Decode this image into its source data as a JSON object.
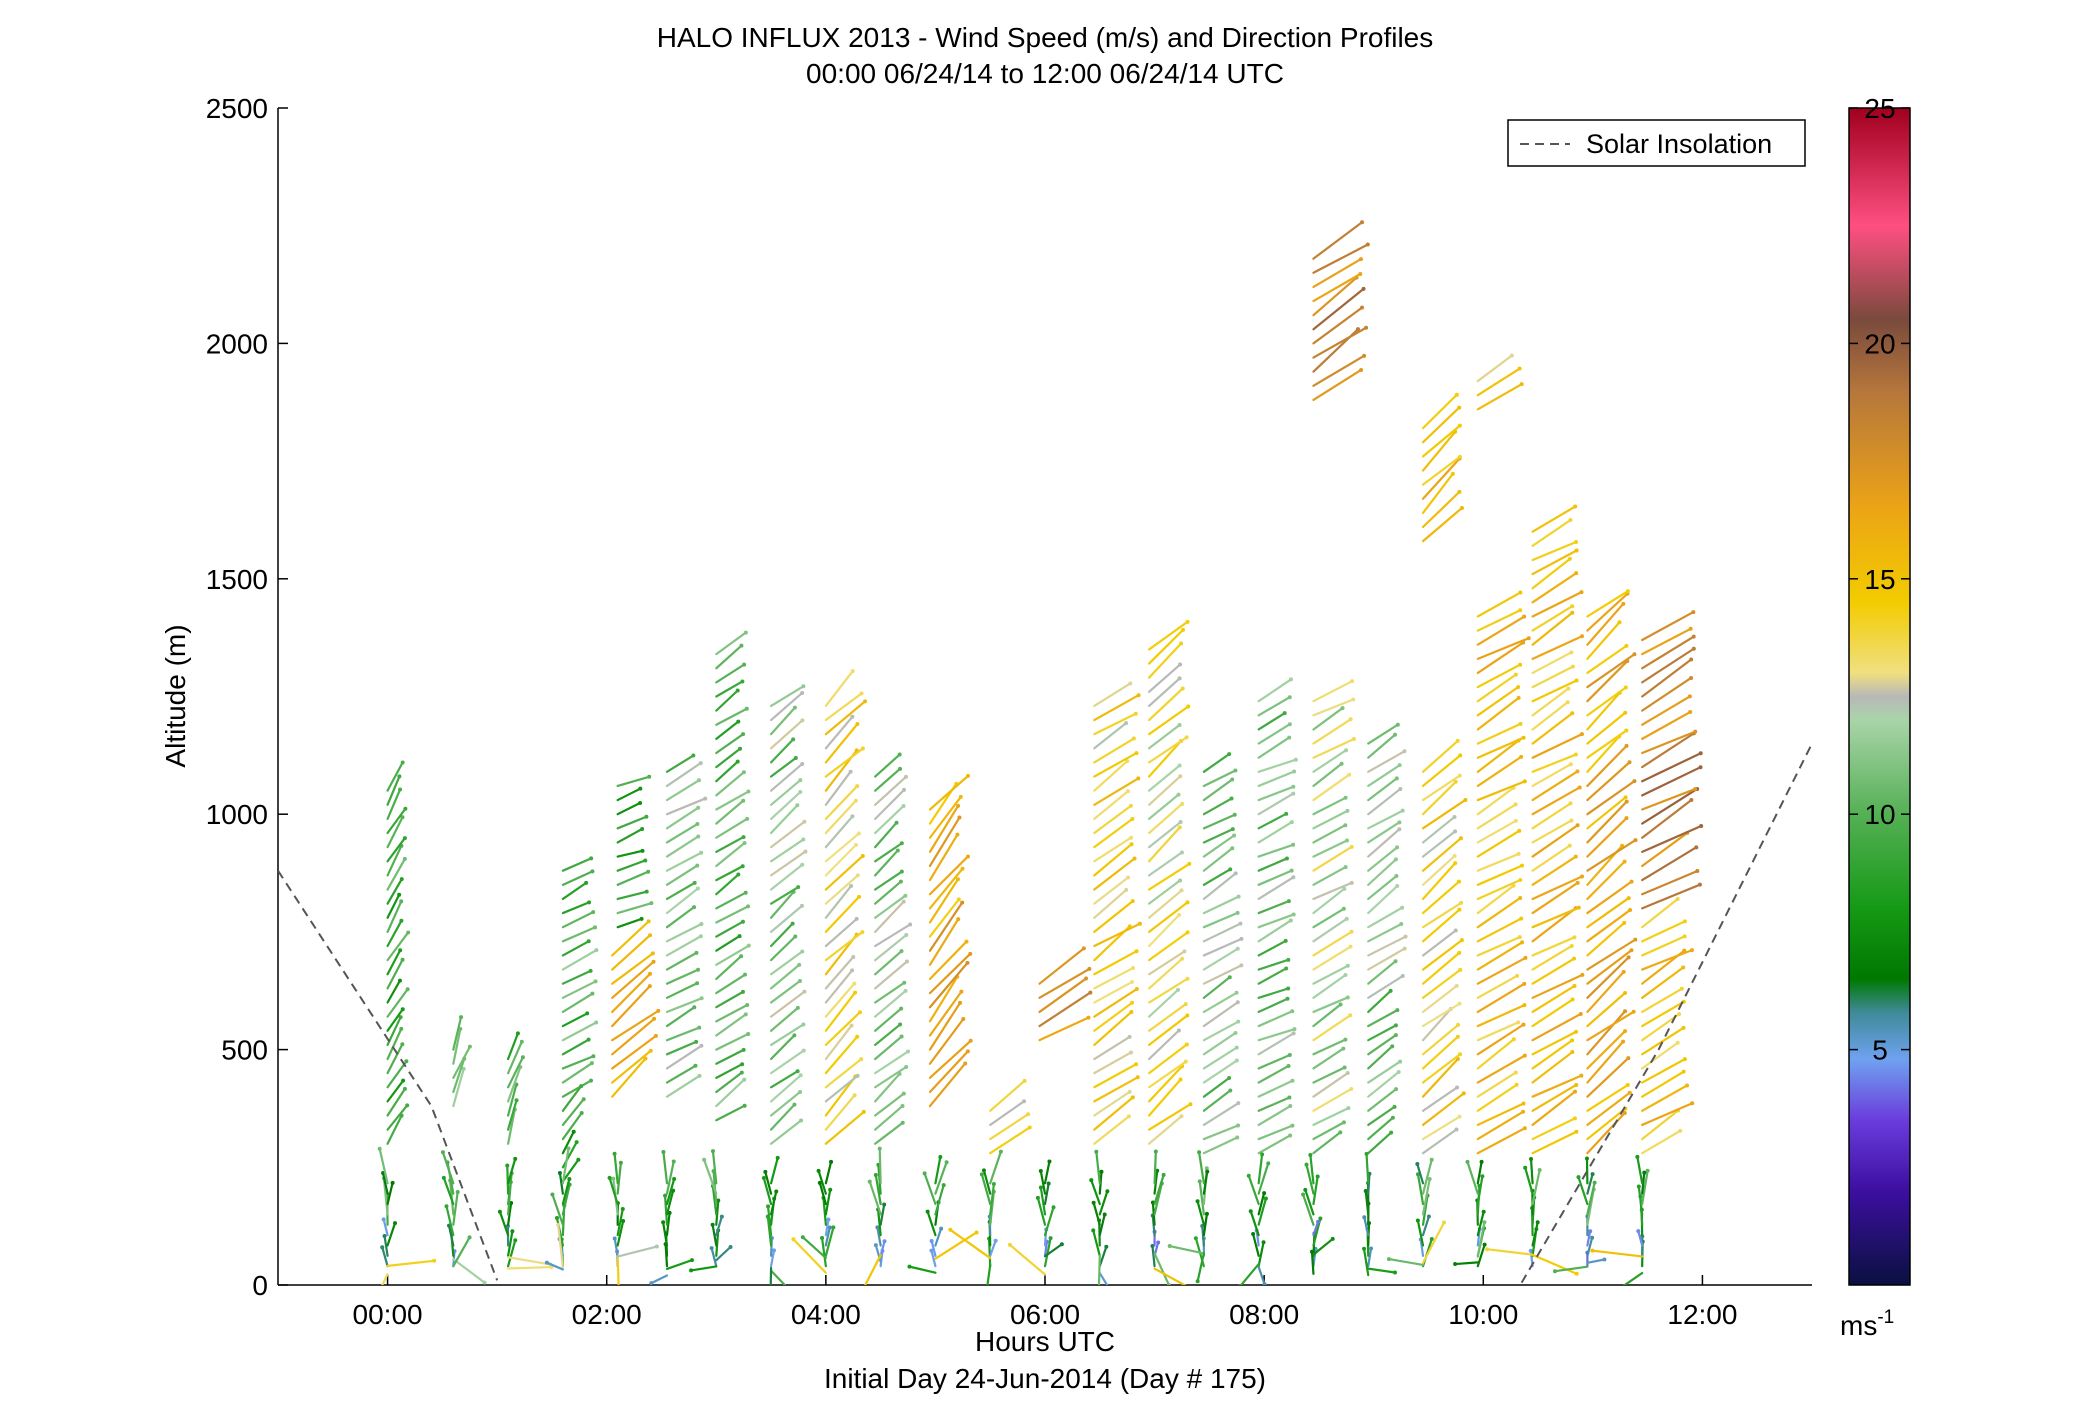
{
  "chart_data": {
    "type": "quiver",
    "title": "HALO INFLUX 2013 - Wind Speed (m/s) and Direction Profiles",
    "subtitle": "00:00 06/24/14 to 12:00 06/24/14  UTC",
    "xlabel": "Hours UTC",
    "xlabel2": "Initial Day 24-Jun-2014 (Day # 175)",
    "ylabel": "Altitude (m)",
    "xlim": [
      -1,
      13
    ],
    "ylim": [
      0,
      2500
    ],
    "xticks": [
      0,
      2,
      4,
      6,
      8,
      10,
      12
    ],
    "xtick_labels": [
      "00:00",
      "02:00",
      "04:00",
      "06:00",
      "08:00",
      "10:00",
      "12:00"
    ],
    "yticks": [
      0,
      500,
      1000,
      1500,
      2000,
      2500
    ],
    "ytick_labels": [
      "0",
      "500",
      "1000",
      "1500",
      "2000",
      "2500"
    ],
    "legend": {
      "label": "Solar Insolation",
      "position": "top-right",
      "line_color": "#555555"
    },
    "colorbar": {
      "range": [
        0,
        25
      ],
      "ticks": [
        5,
        10,
        15,
        20,
        25
      ],
      "tick_labels": [
        "5",
        "10",
        "15",
        "20",
        "25"
      ],
      "unit": "ms",
      "unit_exp": "-1",
      "stops": [
        {
          "v": 0,
          "color": "#0a1040"
        },
        {
          "v": 2,
          "color": "#3c0fa0"
        },
        {
          "v": 3.5,
          "color": "#6a3cdc"
        },
        {
          "v": 4.8,
          "color": "#6fa2f0"
        },
        {
          "v": 5.8,
          "color": "#3e8a96"
        },
        {
          "v": 6.5,
          "color": "#007800"
        },
        {
          "v": 8,
          "color": "#159a15"
        },
        {
          "v": 10,
          "color": "#55b055"
        },
        {
          "v": 12,
          "color": "#a9d4a9"
        },
        {
          "v": 12.5,
          "color": "#b8b8b8"
        },
        {
          "v": 13,
          "color": "#f0e080"
        },
        {
          "v": 14.5,
          "color": "#f2cc00"
        },
        {
          "v": 16.5,
          "color": "#eca416"
        },
        {
          "v": 19,
          "color": "#b5763c"
        },
        {
          "v": 20.5,
          "color": "#7a4a3c"
        },
        {
          "v": 22.5,
          "color": "#ff4f82"
        },
        {
          "v": 25,
          "color": "#a0001e"
        }
      ]
    },
    "solar_insolation": {
      "morning": [
        [
          -1,
          880
        ],
        [
          0.4,
          380
        ],
        [
          1.0,
          10
        ]
      ],
      "evening": [
        [
          10.35,
          5
        ],
        [
          11.6,
          500
        ],
        [
          13,
          1150
        ]
      ]
    },
    "profiles": [
      {
        "t": 0.0,
        "bottom": 300,
        "top": 1060,
        "speed": 9,
        "dir": 210
      },
      {
        "t": 0.6,
        "bottom": 380,
        "top": 500,
        "speed": 11,
        "dir": 200
      },
      {
        "t": 1.1,
        "bottom": 300,
        "top": 500,
        "speed": 10,
        "dir": 200
      },
      {
        "t": 1.6,
        "bottom": 400,
        "top": 900,
        "speed": 10,
        "dir": 240
      },
      {
        "t": 1.6,
        "bottom": 220,
        "top": 390,
        "speed": 9,
        "dir": 210
      },
      {
        "t": 2.05,
        "bottom": 400,
        "top": 720,
        "speed": 16,
        "dir": 230
      },
      {
        "t": 2.1,
        "bottom": 760,
        "top": 1060,
        "speed": 9,
        "dir": 250
      },
      {
        "t": 2.55,
        "bottom": 400,
        "top": 1090,
        "speed": 11,
        "dir": 240
      },
      {
        "t": 3.0,
        "bottom": 350,
        "top": 1360,
        "speed": 10,
        "dir": 235
      },
      {
        "t": 3.5,
        "bottom": 300,
        "top": 1240,
        "speed": 11,
        "dir": 230
      },
      {
        "t": 4.0,
        "bottom": 300,
        "top": 1240,
        "speed": 14,
        "dir": 225
      },
      {
        "t": 4.45,
        "bottom": 300,
        "top": 1090,
        "speed": 11,
        "dir": 230
      },
      {
        "t": 4.95,
        "bottom": 380,
        "top": 1010,
        "speed": 16,
        "dir": 220
      },
      {
        "t": 5.5,
        "bottom": 280,
        "top": 390,
        "speed": 14,
        "dir": 230
      },
      {
        "t": 5.95,
        "bottom": 520,
        "top": 650,
        "speed": 17,
        "dir": 240
      },
      {
        "t": 6.45,
        "bottom": 300,
        "top": 1240,
        "speed": 14,
        "dir": 235
      },
      {
        "t": 6.95,
        "bottom": 300,
        "top": 1360,
        "speed": 13,
        "dir": 230
      },
      {
        "t": 7.45,
        "bottom": 280,
        "top": 1090,
        "speed": 11,
        "dir": 240
      },
      {
        "t": 7.95,
        "bottom": 280,
        "top": 1240,
        "speed": 11,
        "dir": 245
      },
      {
        "t": 8.45,
        "bottom": 280,
        "top": 1240,
        "speed": 12,
        "dir": 240
      },
      {
        "t": 8.45,
        "bottom": 1880,
        "top": 2180,
        "speed": 18,
        "dir": 235
      },
      {
        "t": 8.95,
        "bottom": 280,
        "top": 1160,
        "speed": 11,
        "dir": 235
      },
      {
        "t": 9.45,
        "bottom": 280,
        "top": 1100,
        "speed": 14,
        "dir": 230
      },
      {
        "t": 9.45,
        "bottom": 1580,
        "top": 1830,
        "speed": 15,
        "dir": 225
      },
      {
        "t": 9.95,
        "bottom": 280,
        "top": 1440,
        "speed": 15,
        "dir": 240
      },
      {
        "t": 9.95,
        "bottom": 1860,
        "top": 1920,
        "speed": 14,
        "dir": 240
      },
      {
        "t": 10.45,
        "bottom": 280,
        "top": 1610,
        "speed": 15,
        "dir": 240
      },
      {
        "t": 10.95,
        "bottom": 280,
        "top": 1440,
        "speed": 16,
        "dir": 230
      },
      {
        "t": 11.45,
        "bottom": 280,
        "top": 760,
        "speed": 15,
        "dir": 240
      },
      {
        "t": 11.45,
        "bottom": 800,
        "top": 1370,
        "speed": 18,
        "dir": 240
      }
    ],
    "surface_times": [
      0.0,
      0.6,
      1.1,
      1.6,
      2.1,
      2.55,
      3.0,
      3.5,
      4.0,
      4.5,
      5.0,
      5.5,
      6.0,
      6.5,
      7.0,
      7.45,
      7.95,
      8.45,
      8.95,
      9.45,
      9.95,
      10.45,
      10.95,
      11.45
    ]
  }
}
